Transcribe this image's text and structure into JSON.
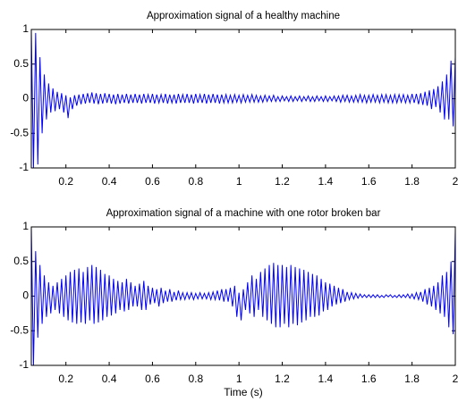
{
  "chart_data": [
    {
      "type": "line",
      "title": "Approximation signal of a healthy machine",
      "color": "#0000ff",
      "x": [
        0.04,
        0.05,
        0.06,
        0.07,
        0.08,
        0.09,
        0.1,
        0.11,
        0.12,
        0.13,
        0.14,
        0.15,
        0.16,
        0.17,
        0.18,
        0.19,
        0.2,
        0.21,
        0.22,
        0.23,
        0.24,
        0.25,
        0.26,
        0.27,
        0.28,
        0.29,
        0.3,
        0.31,
        0.32,
        0.33,
        0.34,
        0.35,
        0.36,
        0.37,
        0.38,
        0.39,
        0.4,
        0.41,
        0.42,
        0.43,
        0.44,
        0.45,
        0.46,
        0.47,
        0.48,
        0.49,
        0.5,
        0.51,
        0.52,
        0.53,
        0.54,
        0.55,
        0.56,
        0.57,
        0.58,
        0.59,
        0.6,
        0.61,
        0.62,
        0.63,
        0.64,
        0.65,
        0.66,
        0.67,
        0.68,
        0.69,
        0.7,
        0.71,
        0.72,
        0.73,
        0.74,
        0.75,
        0.76,
        0.77,
        0.78,
        0.79,
        0.8,
        0.81,
        0.82,
        0.83,
        0.84,
        0.85,
        0.86,
        0.87,
        0.88,
        0.89,
        0.9,
        0.91,
        0.92,
        0.93,
        0.94,
        0.95,
        0.96,
        0.97,
        0.98,
        0.99,
        1.0,
        1.01,
        1.02,
        1.03,
        1.04,
        1.05,
        1.06,
        1.07,
        1.08,
        1.09,
        1.1,
        1.11,
        1.12,
        1.13,
        1.14,
        1.15,
        1.16,
        1.17,
        1.18,
        1.19,
        1.2,
        1.21,
        1.22,
        1.23,
        1.24,
        1.25,
        1.26,
        1.27,
        1.28,
        1.29,
        1.3,
        1.31,
        1.32,
        1.33,
        1.34,
        1.35,
        1.36,
        1.37,
        1.38,
        1.39,
        1.4,
        1.41,
        1.42,
        1.43,
        1.44,
        1.45,
        1.46,
        1.47,
        1.48,
        1.49,
        1.5,
        1.51,
        1.52,
        1.53,
        1.54,
        1.55,
        1.56,
        1.57,
        1.58,
        1.59,
        1.6,
        1.61,
        1.62,
        1.63,
        1.64,
        1.65,
        1.66,
        1.67,
        1.68,
        1.69,
        1.7,
        1.71,
        1.72,
        1.73,
        1.74,
        1.75,
        1.76,
        1.77,
        1.78,
        1.79,
        1.8,
        1.81,
        1.82,
        1.83,
        1.84,
        1.85,
        1.86,
        1.87,
        1.88,
        1.89,
        1.9,
        1.91,
        1.92,
        1.93,
        1.94,
        1.95,
        1.96,
        1.97,
        1.98,
        1.99,
        2.0
      ],
      "values": [
        1,
        -1,
        0.95,
        -0.95,
        0.6,
        -0.5,
        0.35,
        -0.3,
        0.22,
        -0.2,
        0.15,
        -0.18,
        0.1,
        -0.15,
        0.08,
        -0.2,
        0.05,
        -0.28,
        0.02,
        -0.15,
        0.05,
        -0.1,
        0.06,
        -0.08,
        0.07,
        -0.07,
        0.08,
        -0.06,
        0.09,
        -0.07,
        0.08,
        -0.08,
        0.07,
        -0.07,
        0.08,
        -0.06,
        0.07,
        -0.07,
        0.06,
        -0.08,
        0.07,
        -0.07,
        0.06,
        -0.06,
        0.07,
        -0.07,
        0.06,
        -0.06,
        0.07,
        -0.06,
        0.06,
        -0.07,
        0.07,
        -0.06,
        0.06,
        -0.06,
        0.07,
        -0.07,
        0.06,
        -0.06,
        0.06,
        -0.06,
        0.07,
        -0.07,
        0.06,
        -0.06,
        0.06,
        -0.07,
        0.07,
        -0.06,
        0.06,
        -0.06,
        0.07,
        -0.06,
        0.06,
        -0.07,
        0.07,
        -0.06,
        0.06,
        -0.06,
        0.07,
        -0.07,
        0.06,
        -0.06,
        0.07,
        -0.06,
        0.06,
        -0.07,
        0.06,
        -0.06,
        0.06,
        -0.06,
        0.05,
        -0.06,
        0.06,
        -0.05,
        0.05,
        -0.06,
        0.06,
        -0.05,
        0.05,
        -0.05,
        0.06,
        -0.05,
        0.05,
        -0.05,
        0.04,
        -0.05,
        0.05,
        -0.04,
        0.04,
        -0.04,
        0.05,
        -0.04,
        0.03,
        -0.04,
        0.04,
        -0.03,
        0.03,
        -0.04,
        0.04,
        -0.04,
        0.03,
        -0.03,
        0.04,
        -0.04,
        0.03,
        -0.03,
        0.04,
        -0.04,
        0.03,
        -0.04,
        0.04,
        -0.03,
        0.03,
        -0.04,
        0.04,
        -0.04,
        0.03,
        -0.03,
        0.04,
        -0.04,
        0.04,
        -0.05,
        0.05,
        -0.04,
        0.05,
        -0.05,
        0.04,
        -0.05,
        0.05,
        -0.05,
        0.06,
        -0.05,
        0.05,
        -0.06,
        0.05,
        -0.05,
        0.06,
        -0.05,
        0.05,
        -0.06,
        0.06,
        -0.05,
        0.06,
        -0.06,
        0.05,
        -0.06,
        0.06,
        -0.06,
        0.06,
        -0.05,
        0.06,
        -0.06,
        0.05,
        -0.06,
        0.07,
        -0.06,
        0.07,
        -0.08,
        0.08,
        -0.09,
        0.1,
        -0.1,
        0.12,
        -0.15,
        0.14,
        -0.12,
        0.18,
        -0.2,
        0.25,
        -0.3,
        0.35,
        -0.3,
        0.55,
        -0.4,
        0.6
      ],
      "xlim": [
        0.04,
        2
      ],
      "xticks": [
        0.2,
        0.4,
        0.6,
        0.8,
        1,
        1.2,
        1.4,
        1.6,
        1.8,
        2
      ],
      "ylim": [
        -1,
        1
      ],
      "yticks": [
        -1,
        -0.5,
        0,
        0.5,
        1
      ]
    },
    {
      "type": "line",
      "title": "Approximation signal of a machine with one rotor broken bar",
      "xlabel": "Time (s)",
      "color": "#0000ff",
      "x": [
        0.04,
        0.05,
        0.06,
        0.07,
        0.08,
        0.09,
        0.1,
        0.11,
        0.12,
        0.13,
        0.14,
        0.15,
        0.16,
        0.17,
        0.18,
        0.19,
        0.2,
        0.21,
        0.22,
        0.23,
        0.24,
        0.25,
        0.26,
        0.27,
        0.28,
        0.29,
        0.3,
        0.31,
        0.32,
        0.33,
        0.34,
        0.35,
        0.36,
        0.37,
        0.38,
        0.39,
        0.4,
        0.41,
        0.42,
        0.43,
        0.44,
        0.45,
        0.46,
        0.47,
        0.48,
        0.49,
        0.5,
        0.51,
        0.52,
        0.53,
        0.54,
        0.55,
        0.56,
        0.57,
        0.58,
        0.59,
        0.6,
        0.61,
        0.62,
        0.63,
        0.64,
        0.65,
        0.66,
        0.67,
        0.68,
        0.69,
        0.7,
        0.71,
        0.72,
        0.73,
        0.74,
        0.75,
        0.76,
        0.77,
        0.78,
        0.79,
        0.8,
        0.81,
        0.82,
        0.83,
        0.84,
        0.85,
        0.86,
        0.87,
        0.88,
        0.89,
        0.9,
        0.91,
        0.92,
        0.93,
        0.94,
        0.95,
        0.96,
        0.97,
        0.98,
        0.99,
        1.0,
        1.01,
        1.02,
        1.03,
        1.04,
        1.05,
        1.06,
        1.07,
        1.08,
        1.09,
        1.1,
        1.11,
        1.12,
        1.13,
        1.14,
        1.15,
        1.16,
        1.17,
        1.18,
        1.19,
        1.2,
        1.21,
        1.22,
        1.23,
        1.24,
        1.25,
        1.26,
        1.27,
        1.28,
        1.29,
        1.3,
        1.31,
        1.32,
        1.33,
        1.34,
        1.35,
        1.36,
        1.37,
        1.38,
        1.39,
        1.4,
        1.41,
        1.42,
        1.43,
        1.44,
        1.45,
        1.46,
        1.47,
        1.48,
        1.49,
        1.5,
        1.51,
        1.52,
        1.53,
        1.54,
        1.55,
        1.56,
        1.57,
        1.58,
        1.59,
        1.6,
        1.61,
        1.62,
        1.63,
        1.64,
        1.65,
        1.66,
        1.67,
        1.68,
        1.69,
        1.7,
        1.71,
        1.72,
        1.73,
        1.74,
        1.75,
        1.76,
        1.77,
        1.78,
        1.79,
        1.8,
        1.81,
        1.82,
        1.83,
        1.84,
        1.85,
        1.86,
        1.87,
        1.88,
        1.89,
        1.9,
        1.91,
        1.92,
        1.93,
        1.94,
        1.95,
        1.96,
        1.97,
        1.98,
        1.99,
        2.0
      ],
      "values": [
        1,
        -1,
        0.65,
        -0.6,
        0.45,
        -0.4,
        0.3,
        -0.3,
        0.2,
        -0.25,
        0.15,
        -0.2,
        0.2,
        -0.25,
        0.25,
        -0.3,
        0.3,
        -0.35,
        0.35,
        -0.38,
        0.38,
        -0.4,
        0.4,
        -0.38,
        0.35,
        -0.4,
        0.42,
        -0.35,
        0.45,
        -0.4,
        0.42,
        -0.38,
        0.38,
        -0.35,
        0.32,
        -0.3,
        0.3,
        -0.28,
        0.25,
        -0.25,
        0.22,
        -0.2,
        0.2,
        -0.22,
        0.25,
        -0.2,
        0.2,
        -0.15,
        0.15,
        -0.15,
        0.18,
        -0.2,
        0.22,
        -0.2,
        0.15,
        -0.12,
        0.12,
        -0.1,
        0.1,
        -0.15,
        0.12,
        -0.1,
        0.08,
        -0.08,
        0.1,
        -0.08,
        0.06,
        -0.06,
        0.08,
        -0.05,
        0.05,
        -0.05,
        0.05,
        -0.04,
        0.05,
        -0.05,
        0.04,
        -0.04,
        0.05,
        -0.04,
        0.04,
        -0.04,
        0.05,
        -0.05,
        0.06,
        -0.05,
        0.08,
        -0.06,
        0.1,
        -0.08,
        0.1,
        -0.08,
        0.12,
        -0.15,
        0.15,
        -0.3,
        0.05,
        -0.35,
        0.1,
        -0.2,
        0.2,
        -0.25,
        0.3,
        -0.3,
        0.25,
        -0.2,
        0.35,
        -0.3,
        0.4,
        -0.35,
        0.45,
        -0.4,
        0.48,
        -0.45,
        0.45,
        -0.45,
        0.45,
        -0.4,
        0.42,
        -0.45,
        0.45,
        -0.4,
        0.42,
        -0.42,
        0.4,
        -0.38,
        0.38,
        -0.35,
        0.35,
        -0.3,
        0.32,
        -0.3,
        0.3,
        -0.28,
        0.25,
        -0.22,
        0.2,
        -0.2,
        0.18,
        -0.15,
        0.15,
        -0.12,
        0.12,
        -0.1,
        0.1,
        -0.08,
        0.06,
        -0.05,
        0.05,
        -0.04,
        0.04,
        -0.03,
        0.03,
        -0.02,
        0.02,
        -0.02,
        0.02,
        -0.02,
        0.02,
        -0.02,
        0.02,
        -0.02,
        0.01,
        -0.02,
        0.02,
        -0.01,
        0.02,
        -0.02,
        0.01,
        -0.02,
        0.02,
        -0.02,
        0.02,
        -0.02,
        0.03,
        -0.03,
        0.03,
        -0.04,
        0.05,
        -0.05,
        0.06,
        -0.08,
        0.1,
        -0.12,
        0.12,
        -0.15,
        0.15,
        -0.2,
        0.2,
        -0.25,
        0.3,
        -0.3,
        0.35,
        -0.45,
        0.5,
        -0.55,
        0.95
      ],
      "xlim": [
        0.04,
        2
      ],
      "xticks": [
        0.2,
        0.4,
        0.6,
        0.8,
        1,
        1.2,
        1.4,
        1.6,
        1.8,
        2
      ],
      "ylim": [
        -1,
        1
      ],
      "yticks": [
        -1,
        -0.5,
        0,
        0.5,
        1
      ]
    }
  ]
}
